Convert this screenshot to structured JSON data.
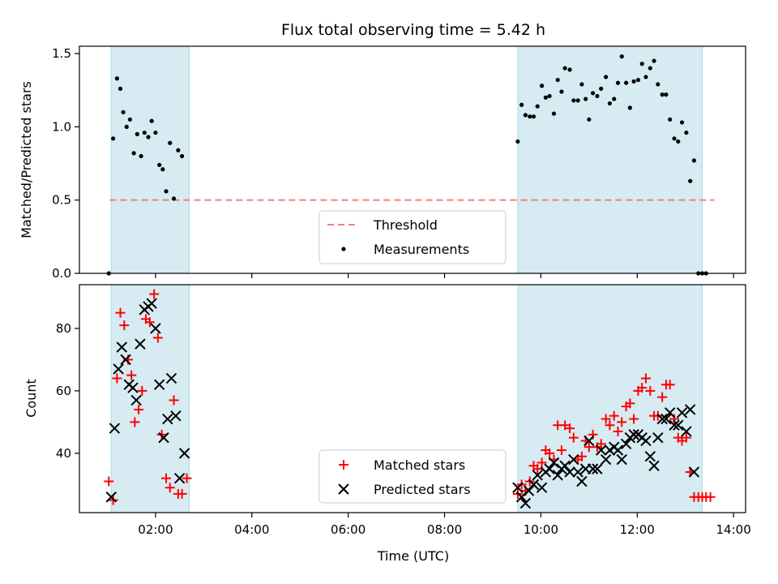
{
  "title": "Flux total observing time = 5.42 h",
  "xlabel": "Time (UTC)",
  "chart_data": [
    {
      "type": "scatter",
      "ylabel": "Matched/Predicted stars",
      "xlim": [
        0.42,
        14.25
      ],
      "ylim": [
        0,
        1.55
      ],
      "x_tick_labels": [],
      "y_ticks": [
        {
          "value": 0.0,
          "label": "0.0"
        },
        {
          "value": 0.5,
          "label": "0.5"
        },
        {
          "value": 1.0,
          "label": "1.0"
        },
        {
          "value": 1.5,
          "label": "1.5"
        }
      ],
      "shaded_spans": [
        [
          1.08,
          2.7
        ],
        [
          9.52,
          13.35
        ]
      ],
      "threshold": {
        "name": "Threshold",
        "value": 0.5,
        "x_range": [
          1.05,
          13.6
        ],
        "color": "#f08080"
      },
      "legend": {
        "placement": "lower-center",
        "entries": [
          "Threshold",
          "Measurements"
        ]
      },
      "series": [
        {
          "name": "Measurements",
          "color": "#000000",
          "points": [
            [
              1.03,
              0.0
            ],
            [
              1.12,
              0.92
            ],
            [
              1.2,
              1.33
            ],
            [
              1.27,
              1.26
            ],
            [
              1.33,
              1.1
            ],
            [
              1.4,
              1.0
            ],
            [
              1.47,
              1.05
            ],
            [
              1.55,
              0.82
            ],
            [
              1.62,
              0.95
            ],
            [
              1.7,
              0.8
            ],
            [
              1.77,
              0.96
            ],
            [
              1.85,
              0.93
            ],
            [
              1.92,
              1.04
            ],
            [
              2.0,
              0.96
            ],
            [
              2.08,
              0.74
            ],
            [
              2.15,
              0.71
            ],
            [
              2.22,
              0.56
            ],
            [
              2.3,
              0.89
            ],
            [
              2.38,
              0.51
            ],
            [
              2.47,
              0.84
            ],
            [
              2.55,
              0.8
            ],
            [
              9.52,
              0.9
            ],
            [
              9.6,
              1.15
            ],
            [
              9.68,
              1.08
            ],
            [
              9.77,
              1.07
            ],
            [
              9.85,
              1.07
            ],
            [
              9.93,
              1.14
            ],
            [
              10.02,
              1.28
            ],
            [
              10.1,
              1.2
            ],
            [
              10.18,
              1.21
            ],
            [
              10.27,
              1.09
            ],
            [
              10.35,
              1.32
            ],
            [
              10.43,
              1.24
            ],
            [
              10.5,
              1.4
            ],
            [
              10.6,
              1.39
            ],
            [
              10.68,
              1.18
            ],
            [
              10.77,
              1.18
            ],
            [
              10.85,
              1.29
            ],
            [
              10.93,
              1.19
            ],
            [
              11.0,
              1.05
            ],
            [
              11.08,
              1.23
            ],
            [
              11.17,
              1.21
            ],
            [
              11.25,
              1.26
            ],
            [
              11.35,
              1.34
            ],
            [
              11.43,
              1.16
            ],
            [
              11.52,
              1.19
            ],
            [
              11.6,
              1.3
            ],
            [
              11.68,
              1.48
            ],
            [
              11.77,
              1.3
            ],
            [
              11.85,
              1.13
            ],
            [
              11.93,
              1.31
            ],
            [
              12.02,
              1.32
            ],
            [
              12.1,
              1.43
            ],
            [
              12.18,
              1.34
            ],
            [
              12.27,
              1.4
            ],
            [
              12.35,
              1.45
            ],
            [
              12.43,
              1.29
            ],
            [
              12.52,
              1.22
            ],
            [
              12.6,
              1.22
            ],
            [
              12.68,
              1.05
            ],
            [
              12.77,
              0.92
            ],
            [
              12.85,
              0.9
            ],
            [
              12.93,
              1.03
            ],
            [
              13.02,
              0.96
            ],
            [
              13.1,
              0.63
            ],
            [
              13.18,
              0.77
            ],
            [
              13.27,
              0.0
            ],
            [
              13.35,
              0.0
            ],
            [
              13.43,
              0.0
            ]
          ]
        }
      ]
    },
    {
      "type": "scatter",
      "ylabel": "Count",
      "xlim": [
        0.42,
        14.25
      ],
      "ylim": [
        21,
        94
      ],
      "x_ticks": [
        {
          "value": 2,
          "label": "02:00"
        },
        {
          "value": 4,
          "label": "04:00"
        },
        {
          "value": 6,
          "label": "06:00"
        },
        {
          "value": 8,
          "label": "08:00"
        },
        {
          "value": 10,
          "label": "10:00"
        },
        {
          "value": 12,
          "label": "12:00"
        },
        {
          "value": 14,
          "label": "14:00"
        }
      ],
      "y_ticks": [
        {
          "value": 40,
          "label": "40"
        },
        {
          "value": 60,
          "label": "60"
        },
        {
          "value": 80,
          "label": "80"
        }
      ],
      "shaded_spans": [
        [
          1.08,
          2.7
        ],
        [
          9.52,
          13.35
        ]
      ],
      "legend": {
        "placement": "lower-center",
        "entries": [
          "Matched stars",
          "Predicted stars"
        ]
      },
      "series": [
        {
          "name": "Matched stars",
          "marker": "plus",
          "color": "#ff0000",
          "points": [
            [
              1.03,
              31
            ],
            [
              1.12,
              25
            ],
            [
              1.2,
              64
            ],
            [
              1.27,
              85
            ],
            [
              1.35,
              81
            ],
            [
              1.43,
              70
            ],
            [
              1.5,
              65
            ],
            [
              1.57,
              50
            ],
            [
              1.65,
              54
            ],
            [
              1.72,
              60
            ],
            [
              1.8,
              83
            ],
            [
              1.88,
              82
            ],
            [
              1.97,
              91
            ],
            [
              2.05,
              77
            ],
            [
              2.13,
              46
            ],
            [
              2.22,
              32
            ],
            [
              2.3,
              29
            ],
            [
              2.38,
              57
            ],
            [
              2.47,
              27
            ],
            [
              2.55,
              27
            ],
            [
              2.65,
              32
            ],
            [
              9.52,
              27
            ],
            [
              9.6,
              30
            ],
            [
              9.68,
              28
            ],
            [
              9.77,
              31
            ],
            [
              9.85,
              36
            ],
            [
              9.93,
              35
            ],
            [
              10.02,
              37
            ],
            [
              10.1,
              41
            ],
            [
              10.18,
              40
            ],
            [
              10.27,
              38
            ],
            [
              10.35,
              49
            ],
            [
              10.43,
              41
            ],
            [
              10.5,
              49
            ],
            [
              10.6,
              48
            ],
            [
              10.68,
              45
            ],
            [
              10.77,
              38
            ],
            [
              10.85,
              39
            ],
            [
              10.93,
              44
            ],
            [
              11.0,
              42
            ],
            [
              11.08,
              46
            ],
            [
              11.17,
              42
            ],
            [
              11.25,
              43
            ],
            [
              11.35,
              51
            ],
            [
              11.43,
              49
            ],
            [
              11.52,
              52
            ],
            [
              11.6,
              47
            ],
            [
              11.68,
              50
            ],
            [
              11.77,
              55
            ],
            [
              11.85,
              56
            ],
            [
              11.93,
              51
            ],
            [
              12.02,
              60
            ],
            [
              12.1,
              61
            ],
            [
              12.18,
              64
            ],
            [
              12.27,
              60
            ],
            [
              12.35,
              52
            ],
            [
              12.43,
              52
            ],
            [
              12.52,
              58
            ],
            [
              12.6,
              62
            ],
            [
              12.68,
              62
            ],
            [
              12.77,
              51
            ],
            [
              12.85,
              45
            ],
            [
              12.93,
              44
            ],
            [
              13.02,
              45
            ],
            [
              13.1,
              34
            ],
            [
              13.18,
              26
            ],
            [
              13.27,
              26
            ],
            [
              13.35,
              26
            ],
            [
              13.43,
              26
            ],
            [
              13.52,
              26
            ]
          ]
        },
        {
          "name": "Predicted stars",
          "marker": "x",
          "color": "#000000",
          "points": [
            [
              1.08,
              26
            ],
            [
              1.15,
              48
            ],
            [
              1.23,
              67
            ],
            [
              1.3,
              74
            ],
            [
              1.38,
              70
            ],
            [
              1.45,
              62
            ],
            [
              1.53,
              61
            ],
            [
              1.6,
              57
            ],
            [
              1.68,
              75
            ],
            [
              1.77,
              86
            ],
            [
              1.85,
              87
            ],
            [
              1.92,
              88
            ],
            [
              2.0,
              80
            ],
            [
              2.08,
              62
            ],
            [
              2.17,
              45
            ],
            [
              2.25,
              51
            ],
            [
              2.33,
              64
            ],
            [
              2.42,
              52
            ],
            [
              2.5,
              32
            ],
            [
              2.6,
              40
            ],
            [
              9.52,
              29
            ],
            [
              9.6,
              26
            ],
            [
              9.68,
              24
            ],
            [
              9.75,
              28
            ],
            [
              9.85,
              30
            ],
            [
              9.93,
              33
            ],
            [
              10.02,
              29
            ],
            [
              10.1,
              34
            ],
            [
              10.18,
              35
            ],
            [
              10.27,
              37
            ],
            [
              10.35,
              33
            ],
            [
              10.43,
              35
            ],
            [
              10.5,
              36
            ],
            [
              10.6,
              34
            ],
            [
              10.68,
              38
            ],
            [
              10.77,
              34
            ],
            [
              10.85,
              31
            ],
            [
              10.93,
              35
            ],
            [
              11.0,
              44
            ],
            [
              11.08,
              35
            ],
            [
              11.17,
              35
            ],
            [
              11.25,
              41
            ],
            [
              11.35,
              38
            ],
            [
              11.43,
              41
            ],
            [
              11.52,
              42
            ],
            [
              11.6,
              41
            ],
            [
              11.68,
              38
            ],
            [
              11.77,
              43
            ],
            [
              11.85,
              45
            ],
            [
              11.93,
              46
            ],
            [
              12.02,
              46
            ],
            [
              12.1,
              45
            ],
            [
              12.18,
              44
            ],
            [
              12.27,
              39
            ],
            [
              12.35,
              36
            ],
            [
              12.43,
              45
            ],
            [
              12.52,
              51
            ],
            [
              12.6,
              51
            ],
            [
              12.68,
              53
            ],
            [
              12.77,
              49
            ],
            [
              12.85,
              49
            ],
            [
              12.93,
              53
            ],
            [
              13.02,
              47
            ],
            [
              13.1,
              54
            ],
            [
              13.18,
              34
            ]
          ]
        }
      ]
    }
  ]
}
